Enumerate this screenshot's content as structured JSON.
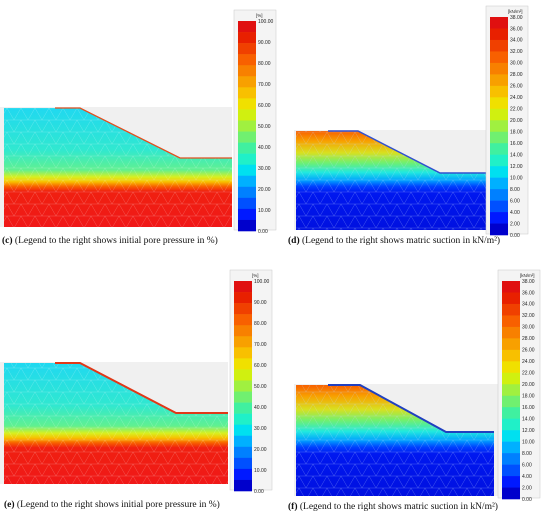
{
  "legend_colors": [
    "#0000cc",
    "#0019ff",
    "#0050ff",
    "#0080ff",
    "#00b0ff",
    "#00e0f0",
    "#20f0c8",
    "#40f0a0",
    "#70f070",
    "#a0f040",
    "#d0f010",
    "#f0e000",
    "#f8c000",
    "#f8a000",
    "#f88000",
    "#f86000",
    "#f04000",
    "#e82000",
    "#e01010"
  ],
  "panels": [
    {
      "id": "c",
      "kind": "pore",
      "legend_unit": "[%]",
      "legend_ticks": [
        "100.00",
        "90.00",
        "80.00",
        "70.00",
        "60.00",
        "50.00",
        "40.00",
        "30.00",
        "20.00",
        "10.00",
        "0.00"
      ],
      "caption_letter": "(c)",
      "caption_text": " (Legend to the right shows initial pore pressure in %)"
    },
    {
      "id": "d",
      "kind": "suction",
      "legend_unit": "[kN/m²]",
      "legend_ticks": [
        "38.00",
        "36.00",
        "34.00",
        "32.00",
        "30.00",
        "28.00",
        "26.00",
        "24.00",
        "22.00",
        "20.00",
        "18.00",
        "16.00",
        "14.00",
        "12.00",
        "10.00",
        "8.00",
        "6.00",
        "4.00",
        "2.00",
        "0.00"
      ],
      "caption_letter": "(d)",
      "caption_text": " (Legend to the right shows matric suction in kN/m²)"
    },
    {
      "id": "e",
      "kind": "pore",
      "legend_unit": "[%]",
      "legend_ticks": [
        "100.00",
        "90.00",
        "80.00",
        "70.00",
        "60.00",
        "50.00",
        "40.00",
        "30.00",
        "20.00",
        "10.00",
        "0.00"
      ],
      "caption_letter": "(e)",
      "caption_text": " (Legend to the right shows initial pore pressure in %)"
    },
    {
      "id": "f",
      "kind": "suction",
      "legend_unit": "[kN/m²]",
      "legend_ticks": [
        "38.00",
        "36.00",
        "34.00",
        "32.00",
        "30.00",
        "28.00",
        "26.00",
        "24.00",
        "22.00",
        "20.00",
        "18.00",
        "16.00",
        "14.00",
        "12.00",
        "10.00",
        "8.00",
        "6.00",
        "4.00",
        "2.00",
        "0.00"
      ],
      "caption_letter": "(f)",
      "caption_text": " (Legend to the right shows matric suction in kN/m²)"
    }
  ]
}
